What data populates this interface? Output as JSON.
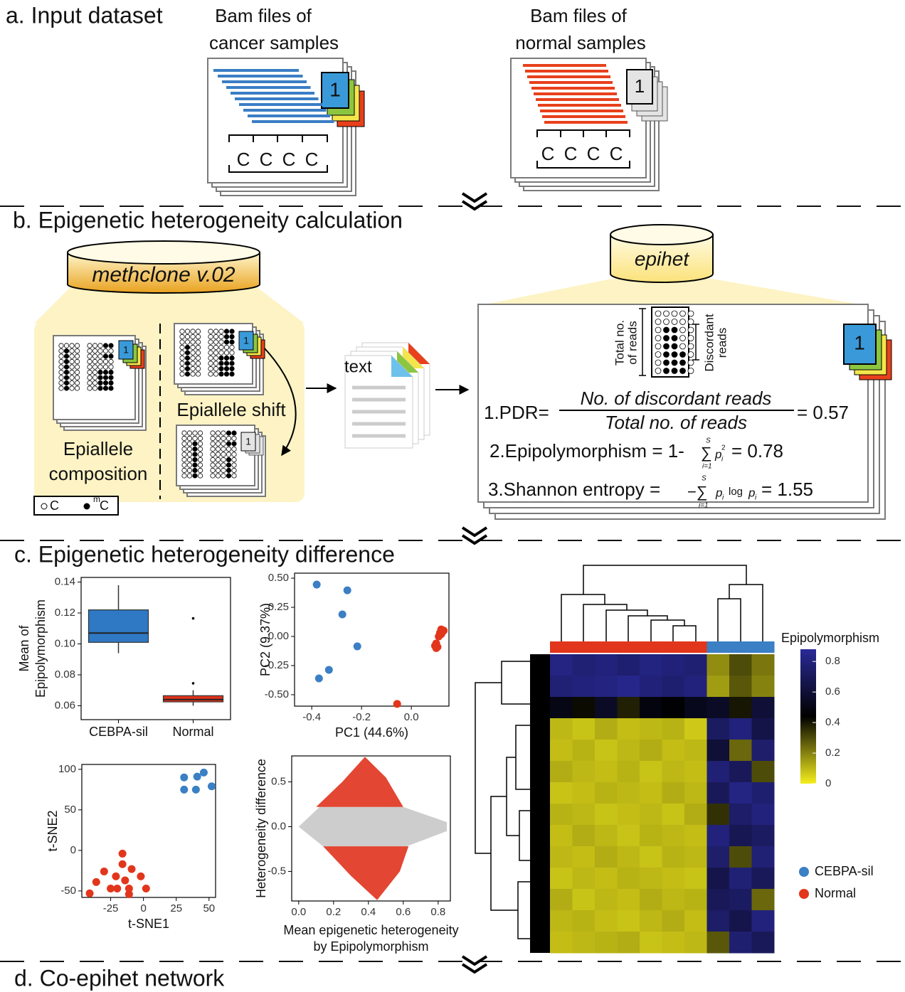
{
  "panel_a": {
    "title": "a. Input dataset",
    "cancer_label": [
      "Bam files of",
      "cancer samples"
    ],
    "normal_label": [
      "Bam files of",
      "normal samples"
    ],
    "cancer_cpg": [
      "C",
      "C",
      "C",
      "C"
    ],
    "normal_cpg": [
      "C",
      "C",
      "C",
      "C"
    ],
    "cancer_badge": "1",
    "normal_badge": "1"
  },
  "panel_b": {
    "title": "b. Epigenetic heterogeneity calculation",
    "tool": "methclone v.02",
    "tool2": "epihet",
    "composition_badge": "1",
    "shift_badge": "1",
    "shifted_badge": "1",
    "epihet_badge": "1",
    "shift": "Epiallele shift",
    "composition": [
      "Epiallele",
      "composition"
    ],
    "file": "text",
    "total_reads": [
      "Total no.",
      "of reads"
    ],
    "discordant": [
      "Discordant",
      "reads"
    ],
    "pdr": {
      "label": "1.PDR=",
      "numerator": "No. of discordant reads",
      "denominator": "Total no. of reads",
      "result": "= 0.57"
    },
    "epi": {
      "label": "2.Epipolymorphism = 1-",
      "sigma": "∑",
      "upper": "S",
      "lower": "i=1",
      "term": "p",
      "sub": "i",
      "sup": "2",
      "result": "= 0.78"
    },
    "shannon": {
      "label": "3.Shannon entropy =",
      "sigma": "−∑",
      "upper": "S",
      "lower": "i=1",
      "term": "p",
      "sub": "i",
      "log": "log",
      "term2": "p",
      "sub2": "i",
      "result": "= 1.55"
    },
    "legend": {
      "c": "C",
      "mc_sup": "m",
      "mc": "C"
    }
  },
  "panel_c": {
    "title": "c. Epigenetic heterogeneity difference"
  },
  "panel_d": {
    "title": "d. Co-epihet network"
  },
  "chart_data": [
    {
      "type": "box",
      "ylabel": [
        "Mean of",
        "Epipolymorphism"
      ],
      "categories": [
        "CEBPA-sil",
        "Normal"
      ],
      "boxes": [
        {
          "whislo": 0.094,
          "q1": 0.101,
          "med": 0.107,
          "q3": 0.122,
          "whishi": 0.138,
          "color": "#2f78c3"
        },
        {
          "whislo": 0.06,
          "q1": 0.0625,
          "med": 0.064,
          "q3": 0.0665,
          "whishi": 0.07,
          "fliers": [
            0.0745,
            0.1165
          ],
          "color": "#e0321c"
        }
      ],
      "ylim": [
        0.051,
        0.143
      ],
      "yticks": [
        0.06,
        0.08,
        {
          "value": 0.1,
          "label": "0.10"
        },
        0.12,
        0.14
      ]
    },
    {
      "type": "scatter",
      "xlabel": "PC1 (44.6%)",
      "ylabel": "PC2 (9.37%)",
      "series": [
        {
          "color": "#3b7fc4",
          "x": [
            -0.38,
            -0.257,
            -0.277,
            -0.217,
            -0.331,
            -0.371
          ],
          "values": [
            0.445,
            0.396,
            0.189,
            -0.085,
            -0.287,
            -0.36
          ]
        },
        {
          "color": "#e2361c",
          "x": [
            -0.057,
            0.12,
            0.125,
            0.115,
            0.13,
            0.11,
            0.1,
            0.095,
            0.1,
            0.105,
            0.12
          ],
          "values": [
            -0.579,
            0.06,
            0.04,
            0.03,
            0.05,
            0.0,
            -0.06,
            -0.08,
            -0.1,
            -0.09,
            0.02
          ]
        }
      ],
      "xlim": [
        -0.469,
        0.151
      ],
      "ylim": [
        -0.598,
        0.543
      ],
      "xticks": [
        -0.4,
        -0.2,
        {
          "value": 0,
          "label": "0.0"
        }
      ],
      "yticks": [
        {
          "value": 0.5,
          "label": "0.50"
        },
        0.25,
        {
          "value": 0,
          "label": "0.00"
        },
        -0.25,
        {
          "value": -0.5,
          "label": "-0.50"
        }
      ]
    },
    {
      "type": "scatter",
      "xlabel": "t-SNE1",
      "ylabel": "t-SNE2",
      "series": [
        {
          "color": "#3b7fc4",
          "x": [
            31,
            41,
            46,
            31,
            40,
            52
          ],
          "values": [
            90,
            91,
            96,
            75,
            75,
            79
          ]
        },
        {
          "color": "#e2361c",
          "x": [
            -41,
            -36,
            -30,
            -25,
            -21,
            -16,
            -16,
            -14,
            -11,
            -20,
            -9,
            -2,
            -11,
            2
          ],
          "values": [
            -53,
            -39,
            -26,
            -47,
            -32,
            -17,
            -4,
            -37,
            -47,
            -47,
            -23,
            -32,
            -54,
            -47
          ]
        }
      ],
      "xlim": [
        -47,
        55
      ],
      "ylim": [
        -58,
        106
      ],
      "xticks": [
        -25,
        0,
        25,
        50
      ],
      "yticks": [
        -50,
        0,
        50,
        100
      ]
    },
    {
      "type": "region",
      "xlabel": [
        "Mean epigenetic heterogeneity",
        "by Epipolymorphism"
      ],
      "ylabel": "Heterogeneity difference",
      "regions": [
        {
          "color": "#c8c8c8",
          "x": [
            0.0,
            0.12,
            0.6,
            0.85,
            0.85,
            0.62,
            0.14
          ],
          "y": [
            0.0,
            0.22,
            0.22,
            0.05,
            -0.05,
            -0.22,
            -0.22
          ]
        },
        {
          "color": "#e0321c",
          "x": [
            0.1,
            0.25,
            0.38,
            0.5,
            0.6
          ],
          "y": [
            0.22,
            0.5,
            0.78,
            0.55,
            0.22
          ]
        },
        {
          "color": "#e0321c",
          "x": [
            0.14,
            0.3,
            0.45,
            0.58,
            0.63
          ],
          "y": [
            -0.22,
            -0.55,
            -0.82,
            -0.5,
            -0.22
          ]
        }
      ],
      "xlim": [
        -0.04,
        0.87
      ],
      "ylim": [
        -0.83,
        0.79
      ],
      "xticks": [
        {
          "value": 0,
          "label": "0.0"
        },
        0.2,
        0.4,
        0.6,
        0.8
      ],
      "yticks": [
        -0.5,
        {
          "value": 0,
          "label": "0.0"
        },
        0.5
      ]
    },
    {
      "type": "heatmap",
      "legend_title": "Epipolymorphism",
      "clim": [
        0,
        0.88
      ],
      "cticks": [
        0,
        0.2,
        0.4,
        0.6,
        0.8
      ],
      "colormap": [
        "#f5ee1c",
        "#000000",
        "#2a2a98"
      ],
      "series": [
        {
          "name": "CEBPA-sil",
          "color": "#3b7fc4"
        },
        {
          "name": "Normal",
          "color": "#e2361c"
        }
      ],
      "column_group": [
        1,
        1,
        1,
        1,
        1,
        1,
        1,
        0,
        0,
        0
      ],
      "values": [
        [
          0.82,
          0.78,
          0.8,
          0.76,
          0.81,
          0.79,
          0.77,
          0.18,
          0.3,
          0.22
        ],
        [
          0.78,
          0.8,
          0.81,
          0.84,
          0.79,
          0.76,
          0.8,
          0.15,
          0.28,
          0.2
        ],
        [
          0.5,
          0.42,
          0.55,
          0.38,
          0.48,
          0.45,
          0.52,
          0.55,
          0.4,
          0.6
        ],
        [
          0.1,
          0.08,
          0.12,
          0.09,
          0.1,
          0.11,
          0.07,
          0.72,
          0.8,
          0.65
        ],
        [
          0.09,
          0.11,
          0.08,
          0.1,
          0.12,
          0.09,
          0.1,
          0.6,
          0.25,
          0.75
        ],
        [
          0.12,
          0.1,
          0.09,
          0.11,
          0.08,
          0.1,
          0.09,
          0.78,
          0.7,
          0.3
        ],
        [
          0.08,
          0.09,
          0.11,
          0.1,
          0.09,
          0.12,
          0.1,
          0.7,
          0.82,
          0.76
        ],
        [
          0.11,
          0.1,
          0.08,
          0.09,
          0.1,
          0.08,
          0.12,
          0.35,
          0.74,
          0.8
        ],
        [
          0.09,
          0.12,
          0.1,
          0.08,
          0.11,
          0.1,
          0.09,
          0.8,
          0.68,
          0.72
        ],
        [
          0.1,
          0.09,
          0.12,
          0.1,
          0.08,
          0.11,
          0.1,
          0.75,
          0.3,
          0.78
        ],
        [
          0.08,
          0.1,
          0.09,
          0.11,
          0.1,
          0.09,
          0.08,
          0.66,
          0.78,
          0.7
        ],
        [
          0.12,
          0.08,
          0.1,
          0.09,
          0.12,
          0.1,
          0.11,
          0.7,
          0.72,
          0.25
        ],
        [
          0.1,
          0.11,
          0.09,
          0.08,
          0.1,
          0.12,
          0.09,
          0.74,
          0.66,
          0.8
        ],
        [
          0.09,
          0.1,
          0.11,
          0.12,
          0.08,
          0.09,
          0.1,
          0.28,
          0.76,
          0.7
        ]
      ]
    }
  ]
}
